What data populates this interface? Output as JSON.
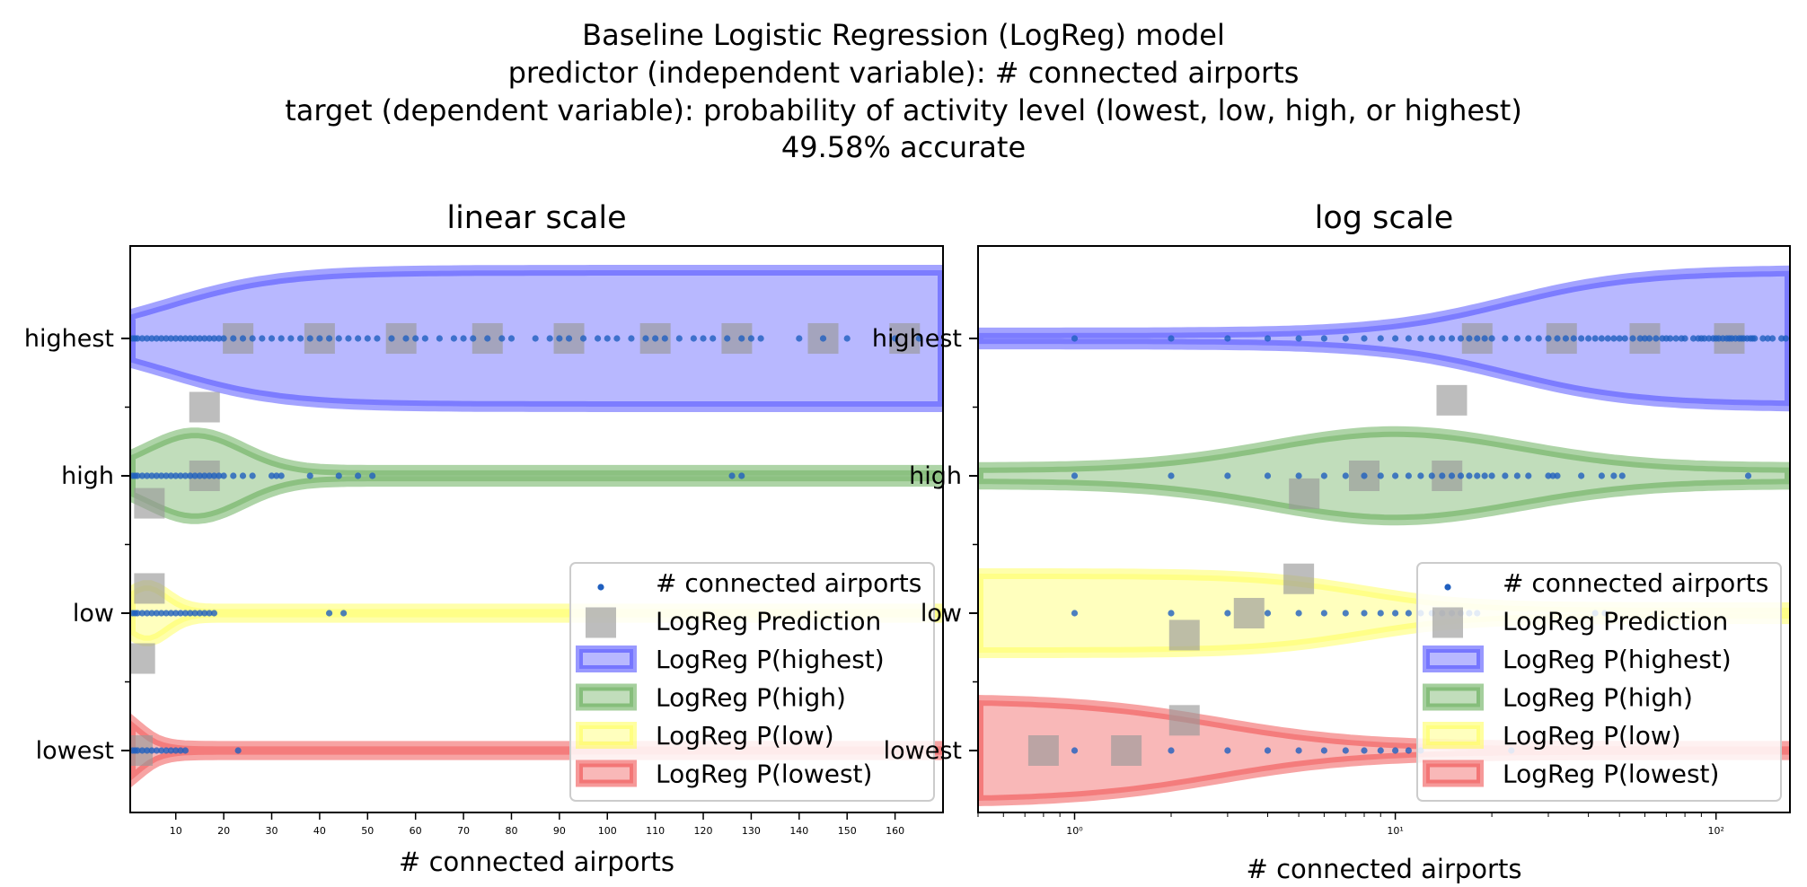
{
  "suptitle": [
    "Baseline Logistic Regression (LogReg) model",
    "predictor (independent variable): # connected airports",
    "target (dependent variable): probability of activity level (lowest, low, high, or highest)",
    "49.58% accurate"
  ],
  "colors": {
    "highest": "#3333ff",
    "high": "#4c9f3c",
    "low": "#ffff44",
    "lowest": "#ee3333",
    "points": "#1f5fbf",
    "prediction": "#999999"
  },
  "chart_data": [
    {
      "type": "scatter",
      "title": "linear scale",
      "xlabel": "# connected airports",
      "xscale": "linear",
      "xlim": [
        0.5,
        170
      ],
      "xticks": [
        10,
        20,
        30,
        40,
        50,
        60,
        70,
        80,
        90,
        100,
        110,
        120,
        130,
        140,
        150,
        160
      ],
      "yticks": [
        "lowest",
        "low",
        "high",
        "highest"
      ],
      "legend_position": "lower-right",
      "legend": [
        "# connected airports",
        "LogReg Prediction",
        "LogReg P(highest)",
        "LogReg P(high)",
        "LogReg P(low)",
        "LogReg P(lowest)"
      ],
      "series": [
        {
          "name": "# connected airports",
          "level": "highest",
          "x": [
            1,
            1.5,
            2,
            3,
            4,
            5,
            6,
            7,
            8,
            9,
            10,
            11,
            12,
            13,
            14,
            15,
            16,
            17,
            18,
            19,
            20,
            22,
            24,
            26,
            28,
            30,
            32,
            34,
            36,
            38,
            40,
            42,
            44,
            46,
            48,
            50,
            52,
            55,
            58,
            60,
            62,
            65,
            68,
            70,
            72,
            75,
            78,
            80,
            85,
            88,
            90,
            92,
            95,
            98,
            100,
            102,
            105,
            108,
            110,
            112,
            115,
            118,
            120,
            122,
            125,
            128,
            130,
            132,
            140,
            145,
            150,
            160,
            165
          ]
        },
        {
          "name": "# connected airports",
          "level": "high",
          "x": [
            1,
            1.5,
            2,
            3,
            4,
            5,
            6,
            7,
            8,
            9,
            10,
            11,
            12,
            13,
            14,
            15,
            16,
            17,
            18,
            19,
            20,
            22,
            24,
            26,
            30,
            31,
            32,
            38,
            44,
            48,
            51,
            126,
            128
          ]
        },
        {
          "name": "# connected airports",
          "level": "low",
          "x": [
            1,
            1.5,
            2,
            3,
            4,
            5,
            6,
            7,
            8,
            9,
            10,
            11,
            12,
            13,
            14,
            15,
            16,
            17,
            18,
            42,
            45
          ]
        },
        {
          "name": "# connected airports",
          "level": "lowest",
          "x": [
            1,
            1.5,
            2,
            3,
            4,
            5,
            6,
            7,
            8,
            9,
            10,
            11,
            12,
            23
          ]
        }
      ],
      "predictions": [
        {
          "x": 23,
          "y": 3.0
        },
        {
          "x": 40,
          "y": 3.0
        },
        {
          "x": 57,
          "y": 3.0
        },
        {
          "x": 75,
          "y": 3.0
        },
        {
          "x": 92,
          "y": 3.0
        },
        {
          "x": 110,
          "y": 3.0
        },
        {
          "x": 127,
          "y": 3.0
        },
        {
          "x": 145,
          "y": 3.0
        },
        {
          "x": 162,
          "y": 3.0
        },
        {
          "x": 16,
          "y": 2.5
        },
        {
          "x": 16,
          "y": 2.0
        },
        {
          "x": 4.5,
          "y": 1.8
        },
        {
          "x": 4.5,
          "y": 1.18
        },
        {
          "x": 2.5,
          "y": 0.67
        },
        {
          "x": 2,
          "y": 0
        }
      ]
    },
    {
      "type": "scatter",
      "title": "log scale",
      "xlabel": "# connected airports",
      "xscale": "log",
      "xlim": [
        0.5,
        170
      ],
      "xticks": [
        1,
        10,
        100
      ],
      "xticklabels": [
        "10⁰",
        "10¹",
        "10²"
      ],
      "yticks": [
        "lowest",
        "low",
        "high",
        "highest"
      ],
      "legend_position": "lower-right",
      "legend": [
        "# connected airports",
        "LogReg Prediction",
        "LogReg P(highest)",
        "LogReg P(high)",
        "LogReg P(low)",
        "LogReg P(lowest)"
      ],
      "series": [
        {
          "name": "# connected airports",
          "level": "highest",
          "x": [
            1,
            2,
            3,
            4,
            5,
            6,
            7,
            8,
            9,
            10,
            11,
            12,
            13,
            14,
            15,
            16,
            17,
            18,
            19,
            20,
            22,
            24,
            26,
            28,
            30,
            32,
            34,
            36,
            38,
            40,
            42,
            44,
            46,
            48,
            50,
            52,
            55,
            58,
            60,
            62,
            65,
            68,
            70,
            72,
            75,
            78,
            80,
            85,
            88,
            90,
            92,
            95,
            98,
            100,
            102,
            105,
            108,
            110,
            112,
            115,
            118,
            120,
            122,
            125,
            128,
            130,
            132,
            140,
            145,
            150,
            160,
            165
          ]
        },
        {
          "name": "# connected airports",
          "level": "high",
          "x": [
            1,
            2,
            3,
            4,
            5,
            6,
            7,
            8,
            9,
            10,
            11,
            12,
            13,
            14,
            15,
            16,
            17,
            18,
            19,
            20,
            22,
            24,
            26,
            30,
            31,
            32,
            38,
            44,
            48,
            51,
            126
          ]
        },
        {
          "name": "# connected airports",
          "level": "low",
          "x": [
            1,
            2,
            3,
            4,
            5,
            6,
            7,
            8,
            9,
            10,
            11,
            12,
            13,
            14,
            15,
            16,
            17,
            18,
            42,
            45
          ]
        },
        {
          "name": "# connected airports",
          "level": "lowest",
          "x": [
            1,
            2,
            3,
            4,
            5,
            6,
            7,
            8,
            9,
            10,
            11,
            12,
            23
          ]
        }
      ],
      "predictions": [
        {
          "x": 18,
          "y": 3.0
        },
        {
          "x": 33,
          "y": 3.0
        },
        {
          "x": 60,
          "y": 3.0
        },
        {
          "x": 110,
          "y": 3.0
        },
        {
          "x": 15,
          "y": 2.55
        },
        {
          "x": 8,
          "y": 2.0
        },
        {
          "x": 14.5,
          "y": 2.0
        },
        {
          "x": 5.2,
          "y": 1.87
        },
        {
          "x": 5,
          "y": 1.25
        },
        {
          "x": 3.5,
          "y": 1.0
        },
        {
          "x": 2.2,
          "y": 0.84
        },
        {
          "x": 2.2,
          "y": 0.22
        },
        {
          "x": 0.8,
          "y": 0
        },
        {
          "x": 1.45,
          "y": 0
        }
      ]
    }
  ]
}
